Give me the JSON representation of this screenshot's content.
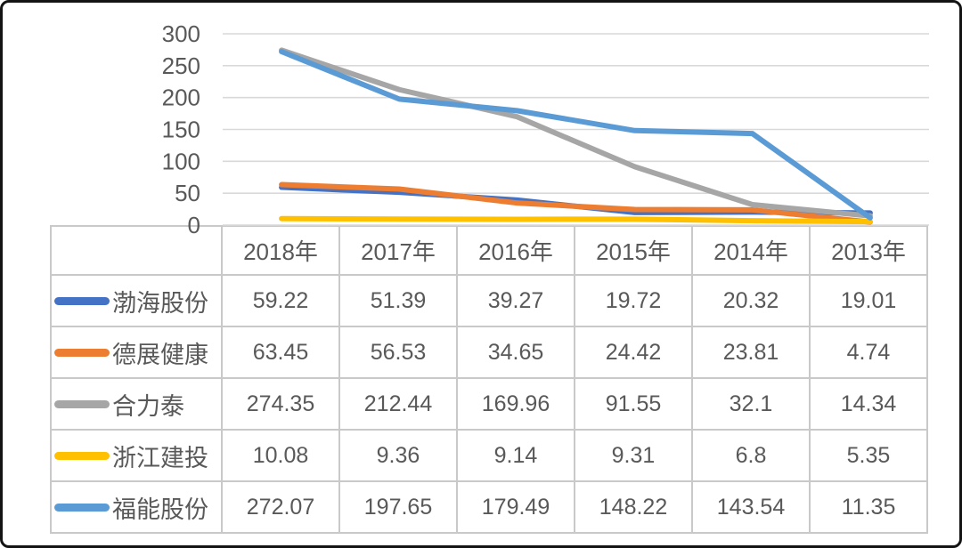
{
  "chart_data": {
    "type": "line",
    "title": "",
    "xlabel": "",
    "ylabel": "",
    "categories": [
      "2018年",
      "2017年",
      "2016年",
      "2015年",
      "2014年",
      "2013年"
    ],
    "series": [
      {
        "name": "渤海股份",
        "color": "#4472C4",
        "values": [
          59.22,
          51.39,
          39.27,
          19.72,
          20.32,
          19.01
        ]
      },
      {
        "name": "德展健康",
        "color": "#ED7D31",
        "values": [
          63.45,
          56.53,
          34.65,
          24.42,
          23.81,
          4.74
        ]
      },
      {
        "name": "合力泰",
        "color": "#A6A6A6",
        "values": [
          274.35,
          212.44,
          169.96,
          91.55,
          32.1,
          14.34
        ]
      },
      {
        "name": "浙江建投",
        "color": "#FFC000",
        "values": [
          10.08,
          9.36,
          9.14,
          9.31,
          6.8,
          5.35
        ]
      },
      {
        "name": "福能股份",
        "color": "#5B9BD5",
        "values": [
          272.07,
          197.65,
          179.49,
          148.22,
          143.54,
          11.35
        ]
      }
    ],
    "yticks": [
      0,
      50,
      100,
      150,
      200,
      250,
      300
    ],
    "ylim": [
      0,
      300
    ],
    "grid": true,
    "gridline_color": "#d9d9d9",
    "axis_label_color": "#595959",
    "legend_position": "table-left-column"
  }
}
